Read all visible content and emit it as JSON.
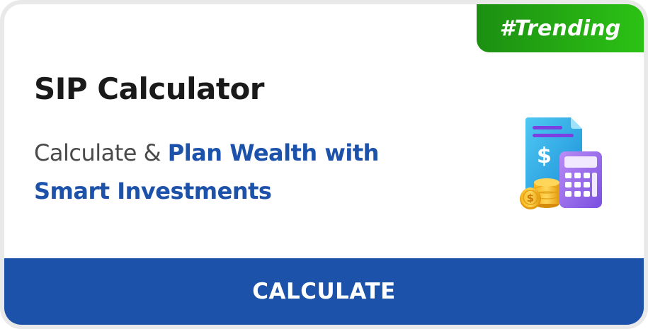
{
  "badge": {
    "label": "#Trending"
  },
  "card": {
    "title": "SIP Calculator",
    "subtitle_plain": "Calculate & ",
    "subtitle_strong_1": "Plan Wealth with",
    "subtitle_strong_2": "Smart Investments"
  },
  "illustration": {
    "icon": "calculator-document-coins-icon",
    "symbol": "$"
  },
  "cta": {
    "label": "CALCULATE"
  },
  "colors": {
    "badge_start": "#1c8f12",
    "badge_end": "#2cc214",
    "accent_blue": "#1d52ab",
    "button_blue": "#1c52aa",
    "title_text": "#1a1a1a",
    "body_text": "#4a4a4a"
  }
}
